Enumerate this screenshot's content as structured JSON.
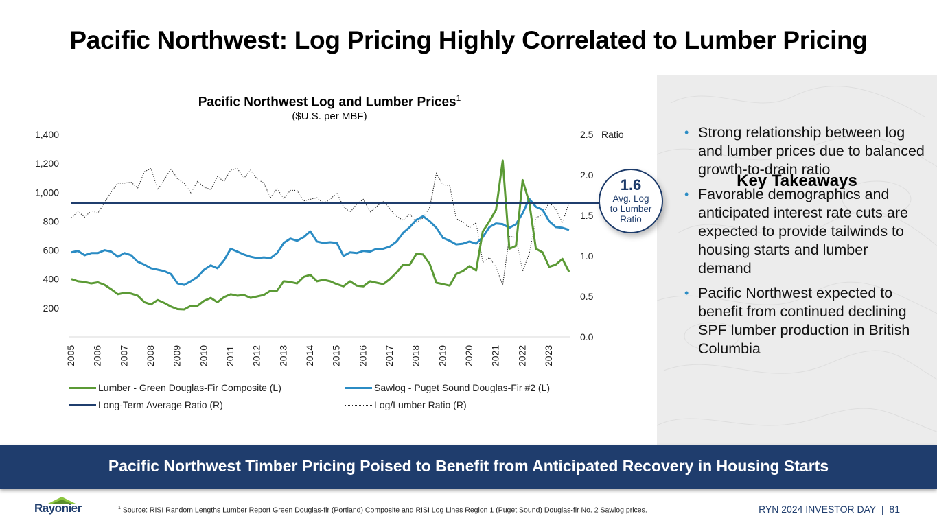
{
  "page": {
    "title": "Pacific Northwest: Log Pricing Highly Correlated to Lumber Pricing",
    "banner": "Pacific Northwest Timber Pricing Poised to Benefit from Anticipated Recovery in Housing Starts",
    "footnote_marker": "1",
    "footnote": "Source: RISI Random Lengths Lumber Report Green Douglas-fir (Portland) Composite and RISI Log Lines Region 1 (Puget Sound) Douglas-fir No. 2 Sawlog prices.",
    "page_label": "RYN 2024 INVESTOR DAY",
    "page_separator": "|",
    "page_number": "81",
    "logo_text": "Rayonier"
  },
  "takeaways": {
    "title": "Key Takeaways",
    "bullet_glyph": "•",
    "items": [
      "Strong relationship between log and lumber prices due to balanced growth-to-drain ratio",
      "Favorable demographics and anticipated interest rate cuts are expected to provide tailwinds to housing starts and lumber demand",
      "Pacific Northwest expected to benefit from continued declining SPF lumber production in British Columbia"
    ]
  },
  "callout": {
    "value": "1.6",
    "line1": "Avg. Log",
    "line2": "to Lumber",
    "line3": "Ratio"
  },
  "chart_data": {
    "type": "line",
    "title": "Pacific Northwest Log and Lumber Prices",
    "title_superscript": "1",
    "subtitle": "($U.S. per MBF)",
    "xlabel": "",
    "ylabel_left": "",
    "ylabel_right": "Ratio",
    "frequency": "quarterly",
    "x_start": "2005 Q1",
    "x_ticks": [
      "2005",
      "2006",
      "2007",
      "2008",
      "2009",
      "2010",
      "2011",
      "2012",
      "2013",
      "2014",
      "2015",
      "2016",
      "2017",
      "2018",
      "2019",
      "2020",
      "2021",
      "2022",
      "2023"
    ],
    "y_left": {
      "range": [
        0,
        1400
      ],
      "ticks": [
        "–",
        "200",
        "400",
        "600",
        "800",
        "1,000",
        "1,200",
        "1,400"
      ]
    },
    "y_right": {
      "range": [
        0.0,
        2.5
      ],
      "ticks": [
        "0.0",
        "0.5",
        "1.0",
        "1.5",
        "2.0",
        "2.5"
      ]
    },
    "grid": false,
    "legend_position": "bottom",
    "series": [
      {
        "name": "Lumber - Green Douglas-Fir Composite (L)",
        "axis": "left",
        "color": "#5b9a35",
        "style": "solid",
        "values": [
          400,
          385,
          380,
          370,
          378,
          360,
          330,
          295,
          305,
          300,
          285,
          240,
          225,
          255,
          235,
          210,
          192,
          190,
          215,
          215,
          250,
          270,
          240,
          275,
          295,
          285,
          290,
          270,
          280,
          290,
          320,
          320,
          385,
          380,
          370,
          415,
          430,
          385,
          395,
          385,
          365,
          350,
          385,
          355,
          350,
          385,
          375,
          365,
          400,
          445,
          500,
          500,
          575,
          570,
          505,
          375,
          365,
          355,
          435,
          455,
          490,
          460,
          730,
          800,
          880,
          1220,
          610,
          630,
          1085,
          930,
          610,
          585,
          485,
          500,
          540,
          450
        ]
      },
      {
        "name": "Sawlog - Puget Sound Douglas-Fir #2 (L)",
        "axis": "left",
        "color": "#2b8cc4",
        "style": "solid",
        "values": [
          585,
          595,
          565,
          580,
          580,
          600,
          590,
          555,
          580,
          565,
          520,
          500,
          475,
          465,
          455,
          435,
          370,
          360,
          385,
          415,
          465,
          495,
          475,
          530,
          610,
          590,
          570,
          555,
          545,
          550,
          545,
          580,
          650,
          680,
          665,
          690,
          730,
          660,
          650,
          655,
          650,
          560,
          585,
          580,
          595,
          590,
          610,
          610,
          625,
          660,
          720,
          760,
          810,
          835,
          800,
          755,
          685,
          665,
          640,
          645,
          660,
          645,
          690,
          760,
          785,
          780,
          755,
          780,
          855,
          955,
          900,
          880,
          800,
          760,
          755,
          740
        ]
      },
      {
        "name": "Long-Term Average Ratio (R)",
        "axis": "right",
        "color": "#1f3d6d",
        "style": "solid",
        "values_constant": 1.65
      },
      {
        "name": "Log/Lumber Ratio (R)",
        "axis": "right",
        "color": "#222222",
        "style": "dotted",
        "values": [
          1.47,
          1.55,
          1.48,
          1.56,
          1.53,
          1.66,
          1.79,
          1.9,
          1.9,
          1.91,
          1.84,
          2.04,
          2.08,
          1.82,
          1.94,
          2.08,
          1.95,
          1.9,
          1.78,
          1.92,
          1.85,
          1.82,
          1.98,
          1.92,
          2.06,
          2.08,
          1.96,
          2.06,
          1.95,
          1.9,
          1.72,
          1.83,
          1.71,
          1.81,
          1.81,
          1.68,
          1.7,
          1.72,
          1.65,
          1.7,
          1.78,
          1.61,
          1.54,
          1.64,
          1.7,
          1.54,
          1.61,
          1.68,
          1.58,
          1.49,
          1.44,
          1.52,
          1.41,
          1.47,
          1.6,
          2.02,
          1.88,
          1.87,
          1.46,
          1.42,
          1.35,
          1.41,
          0.92,
          0.98,
          0.86,
          0.64,
          1.24,
          1.23,
          0.81,
          1.03,
          1.47,
          1.51,
          1.66,
          1.58,
          1.41,
          1.66
        ]
      }
    ]
  }
}
